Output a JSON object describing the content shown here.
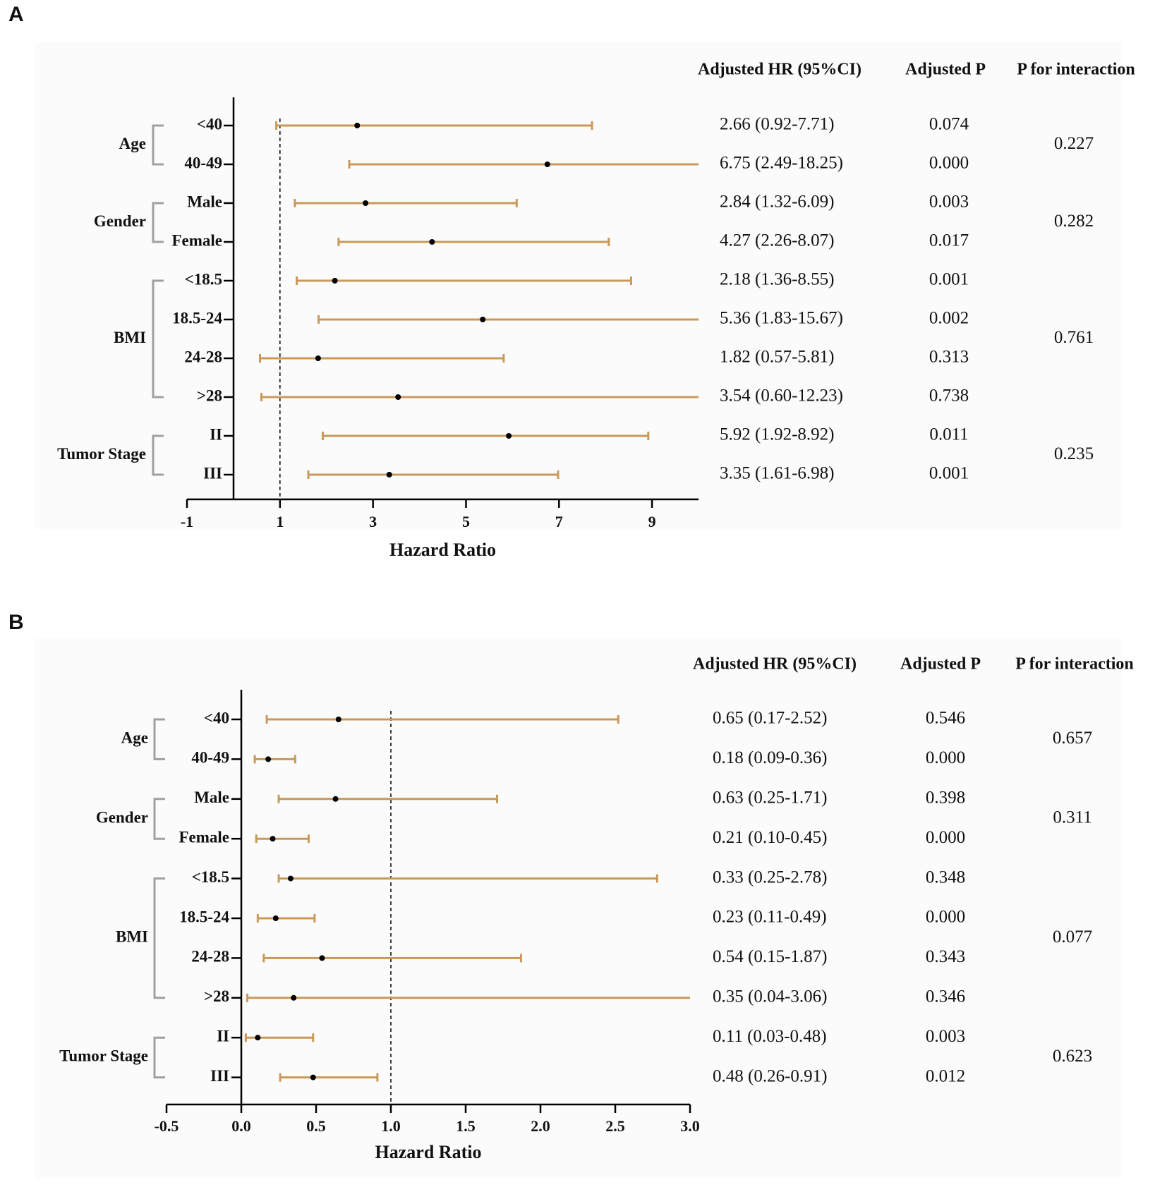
{
  "colors": {
    "ci": "#c8995a",
    "point": "#000000",
    "axis": "#000000",
    "bracket": "#a0a0a0",
    "panel_bg": "#fbfbfb"
  },
  "chart_data": [
    {
      "panel": "A",
      "type": "forest",
      "xlabel": "Hazard Ratio",
      "xlim": [
        -1,
        10
      ],
      "xticks": [
        -1,
        1,
        3,
        5,
        7,
        9
      ],
      "xtick_labels": [
        "-1",
        "1",
        "3",
        "5",
        "7",
        "9"
      ],
      "reference_line": 1,
      "headers": {
        "hr": "Adjusted HR (95%CI)",
        "p": "Adjusted P",
        "interaction": "P for interaction"
      },
      "groups": [
        {
          "name": "Age",
          "interaction": "0.227",
          "rows": [
            {
              "label": "<40",
              "hr": 2.66,
              "lo": 0.92,
              "hi": 7.71,
              "hr_text": "2.66 (0.92-7.71)",
              "p": "0.074"
            },
            {
              "label": "40-49",
              "hr": 6.75,
              "lo": 2.49,
              "hi": 18.25,
              "hr_text": "6.75 (2.49-18.25)",
              "p": "0.000"
            }
          ]
        },
        {
          "name": "Gender",
          "interaction": "0.282",
          "rows": [
            {
              "label": "Male",
              "hr": 2.84,
              "lo": 1.32,
              "hi": 6.09,
              "hr_text": "2.84 (1.32-6.09)",
              "p": "0.003"
            },
            {
              "label": "Female",
              "hr": 4.27,
              "lo": 2.26,
              "hi": 8.07,
              "hr_text": "4.27 (2.26-8.07)",
              "p": "0.017"
            }
          ]
        },
        {
          "name": "BMI",
          "interaction": "0.761",
          "rows": [
            {
              "label": "<18.5",
              "hr": 2.18,
              "lo": 1.36,
              "hi": 8.55,
              "hr_text": "2.18 (1.36-8.55)",
              "p": "0.001"
            },
            {
              "label": "18.5-24",
              "hr": 5.36,
              "lo": 1.83,
              "hi": 15.67,
              "hr_text": "5.36 (1.83-15.67)",
              "p": "0.002"
            },
            {
              "label": "24-28",
              "hr": 1.82,
              "lo": 0.57,
              "hi": 5.81,
              "hr_text": "1.82 (0.57-5.81)",
              "p": "0.313"
            },
            {
              "label": ">28",
              "hr": 3.54,
              "lo": 0.6,
              "hi": 12.23,
              "hr_text": "3.54 (0.60-12.23)",
              "p": "0.738"
            }
          ]
        },
        {
          "name": "Tumor Stage",
          "interaction": "0.235",
          "rows": [
            {
              "label": "II",
              "hr": 5.92,
              "lo": 1.92,
              "hi": 8.92,
              "hr_text": "5.92 (1.92-8.92)",
              "p": "0.011"
            },
            {
              "label": "III",
              "hr": 3.35,
              "lo": 1.61,
              "hi": 6.98,
              "hr_text": "3.35 (1.61-6.98)",
              "p": "0.001"
            }
          ]
        }
      ]
    },
    {
      "panel": "B",
      "type": "forest",
      "xlabel": "Hazard Ratio",
      "xlim": [
        -0.5,
        3.0
      ],
      "xticks": [
        -0.5,
        0.0,
        0.5,
        1.0,
        1.5,
        2.0,
        2.5,
        3.0
      ],
      "xtick_labels": [
        "-0.5",
        "0.0",
        "0.5",
        "1.0",
        "1.5",
        "2.0",
        "2.5",
        "3.0"
      ],
      "reference_line": 1,
      "headers": {
        "hr": "Adjusted HR (95%CI)",
        "p": "Adjusted P",
        "interaction": "P for interaction"
      },
      "groups": [
        {
          "name": "Age",
          "interaction": "0.657",
          "rows": [
            {
              "label": "<40",
              "hr": 0.65,
              "lo": 0.17,
              "hi": 2.52,
              "hr_text": "0.65 (0.17-2.52)",
              "p": "0.546"
            },
            {
              "label": "40-49",
              "hr": 0.18,
              "lo": 0.09,
              "hi": 0.36,
              "hr_text": "0.18 (0.09-0.36)",
              "p": "0.000"
            }
          ]
        },
        {
          "name": "Gender",
          "interaction": "0.311",
          "rows": [
            {
              "label": "Male",
              "hr": 0.63,
              "lo": 0.25,
              "hi": 1.71,
              "hr_text": "0.63 (0.25-1.71)",
              "p": "0.398"
            },
            {
              "label": "Female",
              "hr": 0.21,
              "lo": 0.1,
              "hi": 0.45,
              "hr_text": "0.21 (0.10-0.45)",
              "p": "0.000"
            }
          ]
        },
        {
          "name": "BMI",
          "interaction": "0.077",
          "rows": [
            {
              "label": "<18.5",
              "hr": 0.33,
              "lo": 0.25,
              "hi": 2.78,
              "hr_text": "0.33 (0.25-2.78)",
              "p": "0.348"
            },
            {
              "label": "18.5-24",
              "hr": 0.23,
              "lo": 0.11,
              "hi": 0.49,
              "hr_text": "0.23 (0.11-0.49)",
              "p": "0.000"
            },
            {
              "label": "24-28",
              "hr": 0.54,
              "lo": 0.15,
              "hi": 1.87,
              "hr_text": "0.54 (0.15-1.87)",
              "p": "0.343"
            },
            {
              "label": ">28",
              "hr": 0.35,
              "lo": 0.04,
              "hi": 3.06,
              "hr_text": "0.35 (0.04-3.06)",
              "p": "0.346"
            }
          ]
        },
        {
          "name": "Tumor Stage",
          "interaction": "0.623",
          "rows": [
            {
              "label": "II",
              "hr": 0.11,
              "lo": 0.03,
              "hi": 0.48,
              "hr_text": "0.11 (0.03-0.48)",
              "p": "0.003"
            },
            {
              "label": "III",
              "hr": 0.48,
              "lo": 0.26,
              "hi": 0.91,
              "hr_text": "0.48 (0.26-0.91)",
              "p": "0.012"
            }
          ]
        }
      ]
    }
  ]
}
